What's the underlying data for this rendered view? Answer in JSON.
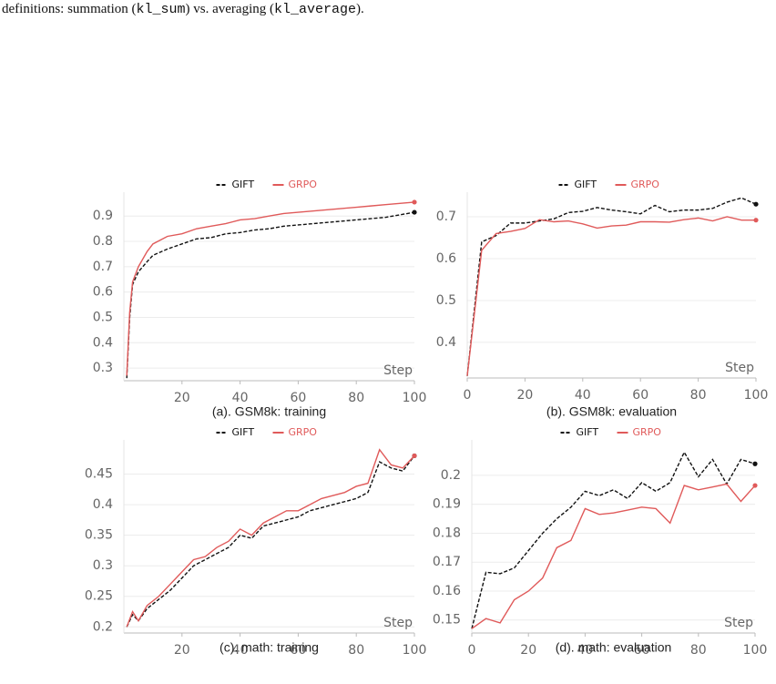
{
  "caption": [
    "definitions: summation (",
    "kl_sum",
    ") vs. averaging (",
    "kl_average",
    ")."
  ],
  "chart_data": [
    {
      "type": "line",
      "title": "(a). GSM8k: training",
      "x_label": "Step",
      "x": [
        1,
        2,
        3,
        5,
        8,
        10,
        15,
        20,
        25,
        30,
        35,
        40,
        45,
        50,
        55,
        60,
        65,
        70,
        75,
        80,
        85,
        90,
        95,
        100
      ],
      "series": [
        {
          "name": "GIFT",
          "color": "#111111",
          "dashed": true,
          "values": [
            0.26,
            0.5,
            0.63,
            0.68,
            0.72,
            0.745,
            0.77,
            0.79,
            0.81,
            0.815,
            0.83,
            0.835,
            0.845,
            0.85,
            0.86,
            0.865,
            0.87,
            0.875,
            0.88,
            0.885,
            0.89,
            0.895,
            0.905,
            0.915
          ]
        },
        {
          "name": "GRPO",
          "color": "#e05a5a",
          "dashed": false,
          "values": [
            0.27,
            0.52,
            0.64,
            0.7,
            0.76,
            0.79,
            0.82,
            0.83,
            0.85,
            0.86,
            0.87,
            0.885,
            0.89,
            0.9,
            0.91,
            0.915,
            0.92,
            0.925,
            0.93,
            0.935,
            0.94,
            0.945,
            0.95,
            0.955
          ]
        }
      ],
      "xlim": [
        0,
        100
      ],
      "ylim": [
        0.25,
        0.98
      ],
      "xticks": [
        20,
        40,
        60,
        80,
        100
      ],
      "yticks": [
        0.3,
        0.4,
        0.5,
        0.6,
        0.7,
        0.8,
        0.9
      ],
      "grid": true
    },
    {
      "type": "line",
      "title": "(b). GSM8k: evaluation",
      "x_label": "Step",
      "x": [
        0,
        5,
        10,
        15,
        20,
        25,
        30,
        35,
        40,
        45,
        50,
        55,
        60,
        65,
        70,
        75,
        80,
        85,
        90,
        95,
        100
      ],
      "series": [
        {
          "name": "GIFT",
          "color": "#111111",
          "dashed": true,
          "values": [
            0.32,
            0.64,
            0.655,
            0.685,
            0.685,
            0.69,
            0.695,
            0.71,
            0.713,
            0.722,
            0.716,
            0.712,
            0.707,
            0.727,
            0.712,
            0.716,
            0.716,
            0.72,
            0.735,
            0.745,
            0.73
          ]
        },
        {
          "name": "GRPO",
          "color": "#e05a5a",
          "dashed": false,
          "values": [
            0.32,
            0.62,
            0.66,
            0.665,
            0.672,
            0.693,
            0.688,
            0.69,
            0.683,
            0.673,
            0.678,
            0.68,
            0.688,
            0.688,
            0.687,
            0.693,
            0.697,
            0.69,
            0.7,
            0.692,
            0.692
          ]
        }
      ],
      "xlim": [
        0,
        100
      ],
      "ylim": [
        0.315,
        0.75
      ],
      "xticks": [
        0,
        20,
        40,
        60,
        80,
        100
      ],
      "yticks": [
        0.4,
        0.5,
        0.6,
        0.7
      ],
      "grid": true
    },
    {
      "type": "line",
      "title": "(c). math: training",
      "x_label": "Step",
      "x": [
        1,
        3,
        5,
        8,
        12,
        16,
        20,
        24,
        28,
        32,
        36,
        40,
        44,
        48,
        52,
        56,
        60,
        64,
        68,
        72,
        76,
        80,
        84,
        88,
        92,
        96,
        100
      ],
      "series": [
        {
          "name": "GIFT",
          "color": "#111111",
          "dashed": true,
          "values": [
            0.2,
            0.22,
            0.21,
            0.23,
            0.245,
            0.26,
            0.28,
            0.3,
            0.31,
            0.32,
            0.33,
            0.35,
            0.345,
            0.365,
            0.37,
            0.375,
            0.38,
            0.39,
            0.395,
            0.4,
            0.405,
            0.41,
            0.42,
            0.47,
            0.46,
            0.455,
            0.48
          ]
        },
        {
          "name": "GRPO",
          "color": "#e05a5a",
          "dashed": false,
          "values": [
            0.2,
            0.225,
            0.21,
            0.235,
            0.25,
            0.27,
            0.29,
            0.31,
            0.315,
            0.33,
            0.34,
            0.36,
            0.35,
            0.37,
            0.38,
            0.39,
            0.39,
            0.4,
            0.41,
            0.415,
            0.42,
            0.43,
            0.435,
            0.49,
            0.465,
            0.46,
            0.48
          ]
        }
      ],
      "xlim": [
        0,
        100
      ],
      "ylim": [
        0.19,
        0.5
      ],
      "xticks": [
        20,
        40,
        60,
        80,
        100
      ],
      "yticks": [
        0.2,
        0.25,
        0.3,
        0.35,
        0.4,
        0.45
      ],
      "grid": true
    },
    {
      "type": "line",
      "title": "(d). math: evaluation",
      "x_label": "Step",
      "x": [
        0,
        5,
        10,
        15,
        20,
        25,
        30,
        35,
        40,
        45,
        50,
        55,
        60,
        65,
        70,
        75,
        80,
        85,
        90,
        95,
        100
      ],
      "series": [
        {
          "name": "GIFT",
          "color": "#111111",
          "dashed": true,
          "values": [
            0.147,
            0.1665,
            0.166,
            0.168,
            0.174,
            0.18,
            0.185,
            0.189,
            0.1945,
            0.193,
            0.195,
            0.192,
            0.1975,
            0.1945,
            0.1975,
            0.208,
            0.1995,
            0.2055,
            0.197,
            0.2055,
            0.204
          ]
        },
        {
          "name": "GRPO",
          "color": "#e05a5a",
          "dashed": false,
          "values": [
            0.147,
            0.1505,
            0.149,
            0.157,
            0.16,
            0.1645,
            0.175,
            0.1775,
            0.1885,
            0.1865,
            0.187,
            0.188,
            0.189,
            0.1885,
            0.1835,
            0.1965,
            0.195,
            0.196,
            0.197,
            0.191,
            0.1965
          ]
        }
      ],
      "xlim": [
        0,
        100
      ],
      "ylim": [
        0.1455,
        0.211
      ],
      "xticks": [
        0,
        20,
        40,
        60,
        80,
        100
      ],
      "yticks": [
        0.15,
        0.16,
        0.17,
        0.18,
        0.19,
        0.2
      ],
      "grid": true
    }
  ]
}
